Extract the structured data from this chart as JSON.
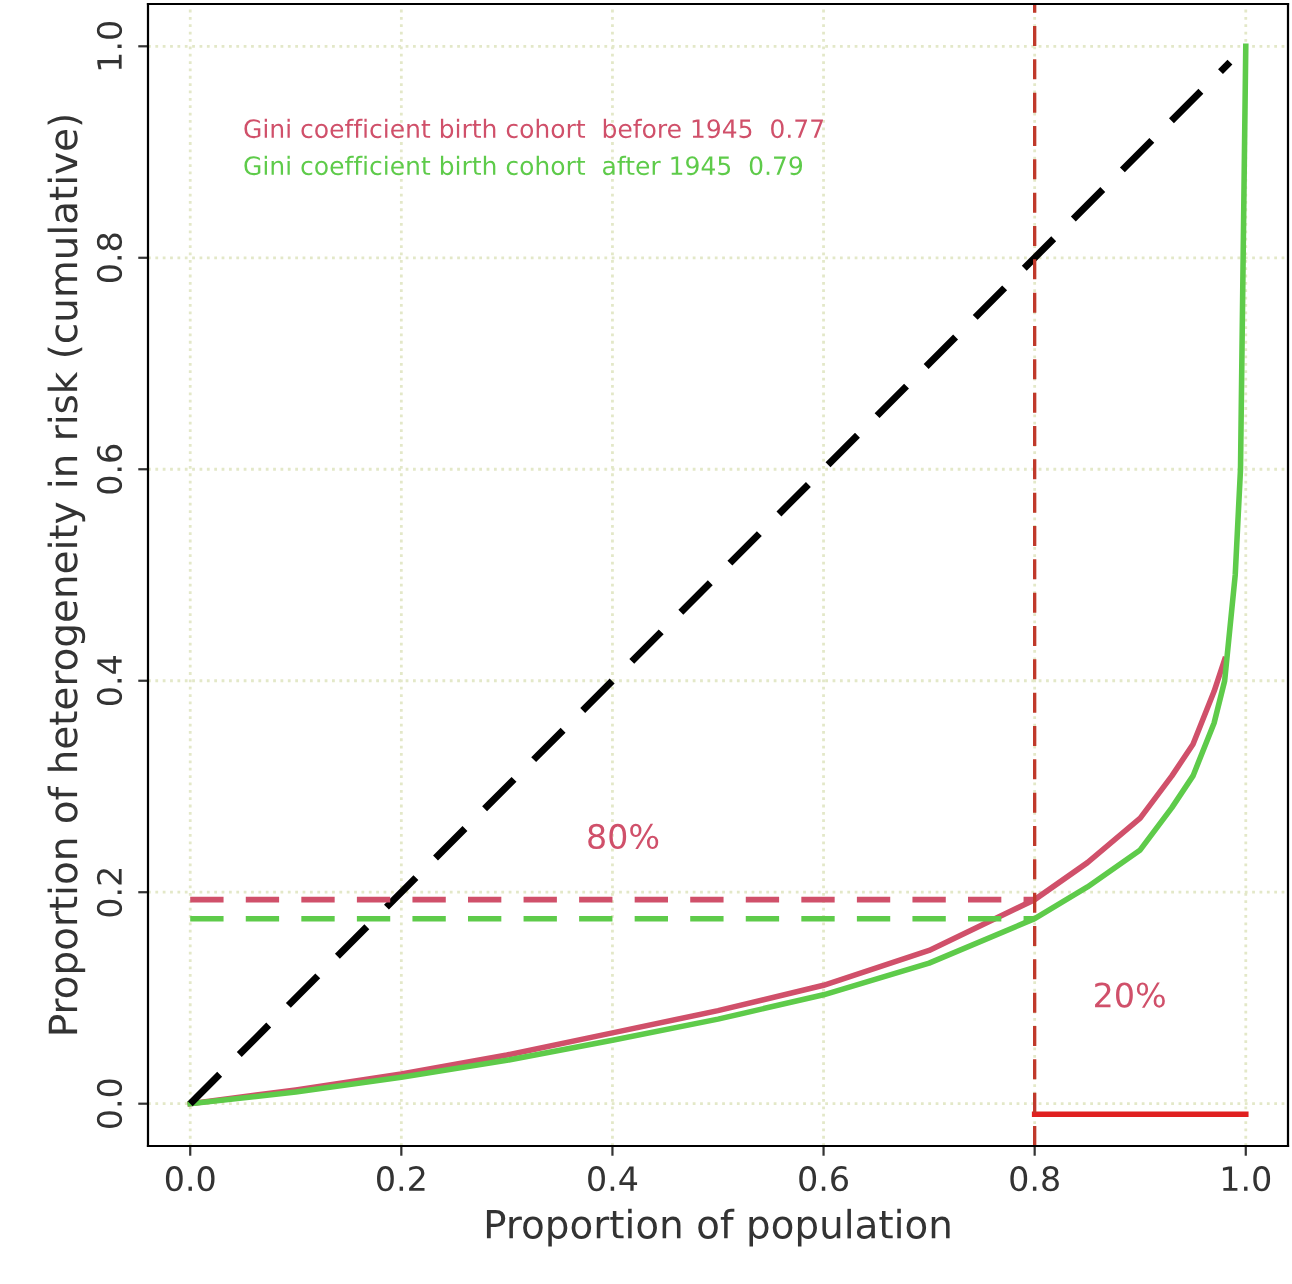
{
  "chart_data": {
    "type": "line",
    "xlabel": "Proportion of population",
    "ylabel": "Proportion of heterogeneity in risk (cumulative)",
    "xlim": [
      -0.04,
      1.04
    ],
    "ylim": [
      -0.04,
      1.04
    ],
    "xticks": [
      {
        "value": 0,
        "label": "0.0"
      },
      0.2,
      0.4,
      0.6,
      0.8,
      {
        "value": 1,
        "label": "1.0"
      }
    ],
    "yticks": [
      {
        "value": 0,
        "label": "0.0"
      },
      0.2,
      0.4,
      0.6,
      0.8,
      {
        "value": 1,
        "label": "1.0"
      }
    ],
    "grid": true,
    "marker": "none",
    "series": [
      {
        "color": "#d0506a",
        "x": [
          0,
          0.1,
          0.2,
          0.3,
          0.4,
          0.5,
          0.6,
          0.7,
          0.8,
          0.85,
          0.9,
          0.93,
          0.95,
          0.97,
          0.98
        ],
        "values": [
          0,
          0.013,
          0.028,
          0.046,
          0.067,
          0.088,
          0.112,
          0.145,
          0.193,
          0.228,
          0.27,
          0.31,
          0.34,
          0.39,
          0.42
        ],
        "line_style": "solid"
      },
      {
        "color": "#5ecb4a",
        "x": [
          0,
          0.1,
          0.2,
          0.3,
          0.4,
          0.5,
          0.6,
          0.7,
          0.8,
          0.85,
          0.9,
          0.93,
          0.95,
          0.97,
          0.98,
          0.99,
          0.995,
          1.0
        ],
        "values": [
          0,
          0.011,
          0.025,
          0.041,
          0.06,
          0.08,
          0.103,
          0.133,
          0.175,
          0.205,
          0.24,
          0.28,
          0.31,
          0.36,
          0.4,
          0.5,
          0.6,
          1.0
        ],
        "line_style": "solid"
      },
      {
        "color": "#000000",
        "x": [
          0,
          0.985
        ],
        "values": [
          0,
          0.985
        ],
        "line_style": "dashed"
      },
      {
        "color": "#d0506a",
        "x": [
          0,
          0.8
        ],
        "values": [
          0.193,
          0.193
        ],
        "line_style": "dashed"
      },
      {
        "color": "#5ecb4a",
        "x": [
          0,
          0.8
        ],
        "values": [
          0.175,
          0.175
        ],
        "line_style": "dashed"
      },
      {
        "color": "#e02020",
        "x": [
          0.8,
          1.0
        ],
        "values": [
          -0.01,
          -0.01
        ],
        "line_style": "solid"
      }
    ],
    "ref_lines": [
      {
        "axis": "x",
        "value": 0.8,
        "color": "#c0392b",
        "line_style": "dashed"
      }
    ],
    "annotations": [
      "Gini coefficient birth cohort  before 1945  0.77",
      "Gini coefficient birth cohort  after 1945  0.79",
      "80%",
      "20%"
    ]
  }
}
